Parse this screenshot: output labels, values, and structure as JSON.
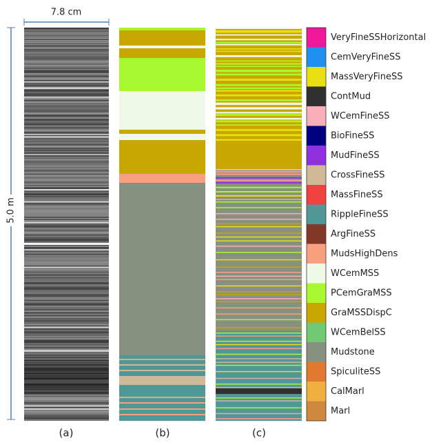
{
  "scale": {
    "width_label": "7.8 cm",
    "height_label": "5.0 m"
  },
  "panels": [
    "(a)",
    "(b)",
    "(c)"
  ],
  "legend": [
    {
      "name": "VeryFineSSHorizontal",
      "color": "#f0189a"
    },
    {
      "name": "CemVeryFineSS",
      "color": "#2090f0"
    },
    {
      "name": "MassVeryFineSS",
      "color": "#e8e010"
    },
    {
      "name": "ContMud",
      "color": "#303030"
    },
    {
      "name": "WCemFineSS",
      "color": "#f8b0b8"
    },
    {
      "name": "BioFineSS",
      "color": "#000080"
    },
    {
      "name": "MudFineSS",
      "color": "#9030e0"
    },
    {
      "name": "CrossFineSS",
      "color": "#d0b898"
    },
    {
      "name": "MassFineSS",
      "color": "#f04040"
    },
    {
      "name": "RippleFineSS",
      "color": "#509898"
    },
    {
      "name": "ArgFineSS",
      "color": "#803828"
    },
    {
      "name": "MudsHighDens",
      "color": "#f8a080"
    },
    {
      "name": "WCemMSS",
      "color": "#f0f8e8"
    },
    {
      "name": "PCemGraMSS",
      "color": "#a8f830"
    },
    {
      "name": "GraMSSDispC",
      "color": "#c8a800"
    },
    {
      "name": "WCemBelSS",
      "color": "#70c870"
    },
    {
      "name": "Mudstone",
      "color": "#889080"
    },
    {
      "name": "SpiculiteSS",
      "color": "#e07830"
    },
    {
      "name": "CalMarl",
      "color": "#f0b040"
    },
    {
      "name": "Marl",
      "color": "#d08840"
    }
  ]
}
